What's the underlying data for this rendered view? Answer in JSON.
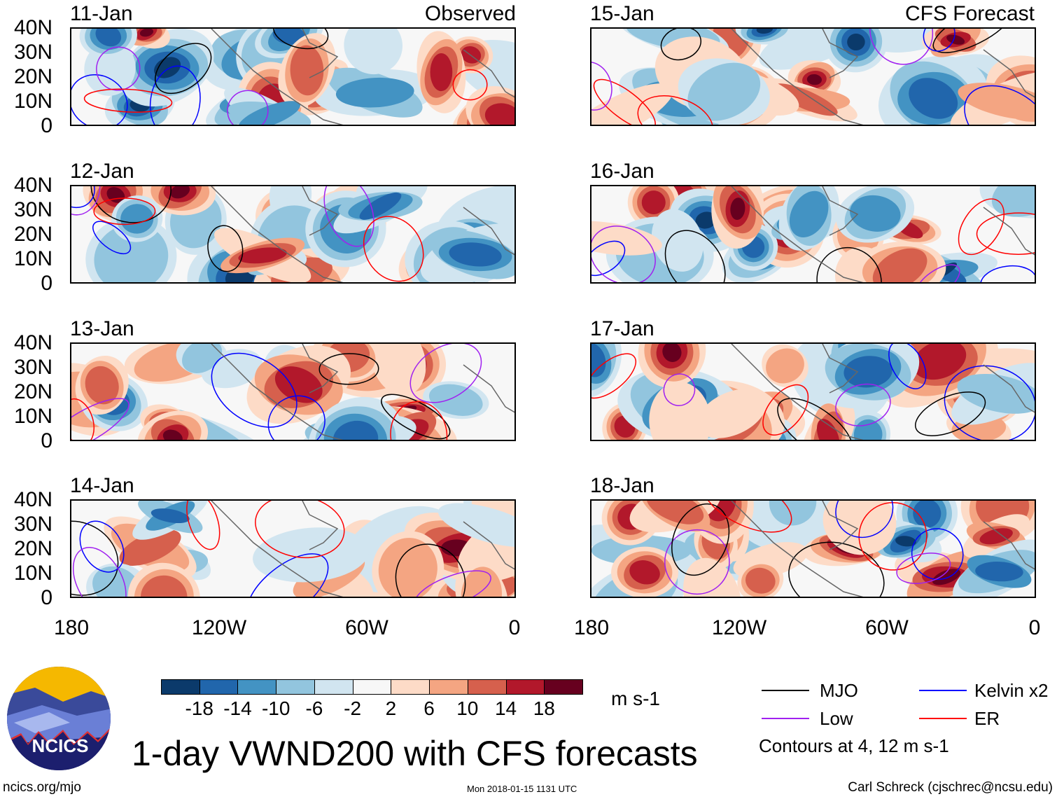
{
  "left_header": "Observed",
  "right_header": "CFS Forecast",
  "panels_left": [
    "11-Jan",
    "12-Jan",
    "13-Jan",
    "14-Jan"
  ],
  "panels_right": [
    "15-Jan",
    "16-Jan",
    "17-Jan",
    "18-Jan"
  ],
  "lat_labels": [
    "40N",
    "30N",
    "20N",
    "10N",
    "0"
  ],
  "lon_labels": [
    "180",
    "120W",
    "60W",
    "0"
  ],
  "colorbar": {
    "colors": [
      "#0b3a6b",
      "#2166ac",
      "#4393c3",
      "#92c5de",
      "#d1e5f0",
      "#f7f7f7",
      "#fddbc7",
      "#f4a582",
      "#d6604d",
      "#b2182b",
      "#67001f"
    ],
    "labels": [
      "-18",
      "-14",
      "-10",
      "-6",
      "-2",
      "2",
      "6",
      "10",
      "14",
      "18"
    ],
    "units": "m s-1"
  },
  "legend": {
    "items": [
      {
        "label": "MJO",
        "color": "#000000"
      },
      {
        "label": "Kelvin x2",
        "color": "#0000ff"
      },
      {
        "label": "Low",
        "color": "#a020f0"
      },
      {
        "label": "ER",
        "color": "#ff0000"
      }
    ],
    "note": "Contours at 4, 12 m s-1"
  },
  "logo_text": "NCICS",
  "title": "1-day VWND200 with CFS forecasts",
  "footer": {
    "url": "ncics.org/mjo",
    "timestamp": "Mon 2018-01-15 1131 UTC",
    "author": "Carl Schreck (cjschrec@ncsu.edu)"
  }
}
